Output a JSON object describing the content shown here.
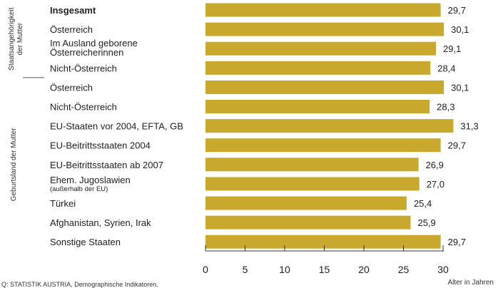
{
  "chart_data": {
    "type": "bar",
    "orientation": "horizontal",
    "title": "",
    "xlabel": "Alter in Jahren",
    "ylabel": "",
    "xlim": [
      0,
      30
    ],
    "xticks": [
      0,
      5,
      10,
      15,
      20,
      25,
      30
    ],
    "categories": [
      {
        "label": "Insgesamt",
        "bold": true
      },
      {
        "label": "Österreich"
      },
      {
        "label": "Im Ausland geborene",
        "label2": "Österreicherinnen"
      },
      {
        "label": "Nicht-Österreich"
      },
      {
        "label": "Österreich"
      },
      {
        "label": "Nicht-Österreich"
      },
      {
        "label": "EU-Staaten vor 2004, EFTA, GB"
      },
      {
        "label": "EU-Beitrittsstaaten 2004"
      },
      {
        "label": "EU-Beitrittsstaaten ab 2007"
      },
      {
        "label": "Ehem. Jugoslawien",
        "sublabel": "(außerhalb der EU)"
      },
      {
        "label": "Türkei"
      },
      {
        "label": "Afghanistan, Syrien, Irak"
      },
      {
        "label": "Sonstige Staaten"
      }
    ],
    "values": [
      29.7,
      30.1,
      29.1,
      28.4,
      30.1,
      28.3,
      31.3,
      29.7,
      26.9,
      27.0,
      25.4,
      25.9,
      29.7
    ],
    "value_labels": [
      "29,7",
      "30,1",
      "29,1",
      "28,4",
      "30,1",
      "28,3",
      "31,3",
      "29,7",
      "26,9",
      "27,0",
      "25,4",
      "25,9",
      "29,7"
    ],
    "groups": [
      {
        "label_lines": [
          "Staatsangehörigkeit",
          "der Mutter"
        ],
        "from": 0,
        "to": 3
      },
      {
        "label_lines": [
          "Geburtsland der Mutter"
        ],
        "from": 4,
        "to": 12
      }
    ],
    "bar_color": "#c8a92e",
    "grid": false,
    "source": "Q: STATISTIK AUSTRIA, Demographische Indikatoren."
  }
}
